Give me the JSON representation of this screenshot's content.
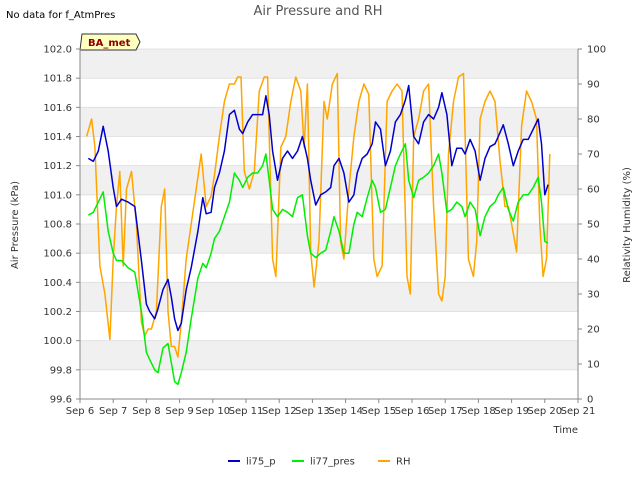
{
  "chart_data": {
    "type": "line",
    "title": "Air Pressure and RH",
    "note": "No data for f_AtmPres",
    "badge": "BA_met",
    "xlabel": "Time",
    "ylabel_left": "Air Pressure (kPa)",
    "ylabel_right": "Relativity Humidity (%)",
    "x_categories": [
      "Sep 6",
      "Sep 7",
      "Sep 8",
      "Sep 9",
      "Sep 10",
      "Sep 11",
      "Sep 12",
      "Sep 13",
      "Sep 14",
      "Sep 15",
      "Sep 16",
      "Sep 17",
      "Sep 18",
      "Sep 19",
      "Sep 20",
      "Sep 21"
    ],
    "xlim": [
      6,
      21
    ],
    "ylim_left": [
      99.6,
      102.0
    ],
    "ylim_right": [
      0,
      100
    ],
    "yticks_left": [
      "99.6",
      "99.8",
      "100.0",
      "100.2",
      "100.4",
      "100.6",
      "100.8",
      "101.0",
      "101.2",
      "101.4",
      "101.6",
      "101.8",
      "102.0"
    ],
    "yticks_right": [
      "0",
      "10",
      "20",
      "30",
      "40",
      "50",
      "60",
      "70",
      "80",
      "90",
      "100"
    ],
    "grid": "horizontal bands",
    "legend_position": "bottom",
    "colors": {
      "li75_p": "#0000cc",
      "li77_pres": "#00ee00",
      "RH": "#ffa500"
    },
    "series": [
      {
        "name": "li75_p",
        "axis": "left",
        "x": [
          6.25,
          6.4,
          6.55,
          6.7,
          6.85,
          7.0,
          7.1,
          7.25,
          7.45,
          7.65,
          7.85,
          8.0,
          8.1,
          8.25,
          8.35,
          8.5,
          8.65,
          8.75,
          8.85,
          8.95,
          9.05,
          9.2,
          9.35,
          9.55,
          9.7,
          9.8,
          9.95,
          10.05,
          10.2,
          10.35,
          10.5,
          10.65,
          10.8,
          10.9,
          11.05,
          11.2,
          11.35,
          11.5,
          11.6,
          11.7,
          11.8,
          11.95,
          12.1,
          12.25,
          12.4,
          12.55,
          12.7,
          12.85,
          12.95,
          13.1,
          13.25,
          13.4,
          13.55,
          13.65,
          13.8,
          13.95,
          14.1,
          14.25,
          14.35,
          14.5,
          14.65,
          14.8,
          14.9,
          15.05,
          15.2,
          15.35,
          15.5,
          15.65,
          15.8,
          15.9,
          16.05,
          16.2,
          16.35,
          16.5,
          16.65,
          16.8,
          16.9,
          17.05,
          17.2,
          17.35,
          17.5,
          17.6,
          17.75,
          17.9,
          18.05,
          18.2,
          18.35,
          18.5,
          18.6,
          18.75,
          18.9,
          19.05,
          19.2,
          19.35,
          19.5,
          19.65,
          19.8,
          19.9,
          20.0,
          20.1
        ],
        "values": [
          101.25,
          101.23,
          101.3,
          101.47,
          101.3,
          101.05,
          100.92,
          100.97,
          100.95,
          100.92,
          100.55,
          100.25,
          100.2,
          100.15,
          100.22,
          100.35,
          100.42,
          100.3,
          100.15,
          100.07,
          100.12,
          100.35,
          100.5,
          100.75,
          100.98,
          100.87,
          100.88,
          101.05,
          101.15,
          101.3,
          101.55,
          101.58,
          101.45,
          101.42,
          101.5,
          101.55,
          101.55,
          101.55,
          101.68,
          101.55,
          101.3,
          101.1,
          101.25,
          101.3,
          101.25,
          101.3,
          101.4,
          101.25,
          101.1,
          100.93,
          101.0,
          101.02,
          101.05,
          101.2,
          101.25,
          101.15,
          100.95,
          101.0,
          101.15,
          101.25,
          101.28,
          101.35,
          101.5,
          101.45,
          101.2,
          101.3,
          101.5,
          101.55,
          101.65,
          101.75,
          101.4,
          101.35,
          101.5,
          101.55,
          101.52,
          101.6,
          101.7,
          101.55,
          101.2,
          101.32,
          101.32,
          101.28,
          101.38,
          101.3,
          101.1,
          101.25,
          101.33,
          101.35,
          101.4,
          101.48,
          101.35,
          101.2,
          101.3,
          101.38,
          101.38,
          101.45,
          101.52,
          101.35,
          101.0,
          101.07
        ]
      },
      {
        "name": "li77_pres",
        "axis": "left",
        "x": [
          6.25,
          6.4,
          6.55,
          6.7,
          6.85,
          7.0,
          7.1,
          7.25,
          7.45,
          7.65,
          7.85,
          8.0,
          8.1,
          8.25,
          8.35,
          8.5,
          8.65,
          8.75,
          8.85,
          8.95,
          9.05,
          9.2,
          9.35,
          9.55,
          9.7,
          9.8,
          9.95,
          10.05,
          10.2,
          10.35,
          10.5,
          10.65,
          10.8,
          10.9,
          11.05,
          11.2,
          11.35,
          11.5,
          11.6,
          11.7,
          11.8,
          11.95,
          12.1,
          12.25,
          12.4,
          12.55,
          12.7,
          12.85,
          12.95,
          13.1,
          13.25,
          13.4,
          13.55,
          13.65,
          13.8,
          13.95,
          14.1,
          14.25,
          14.35,
          14.5,
          14.65,
          14.8,
          14.9,
          15.05,
          15.2,
          15.35,
          15.5,
          15.65,
          15.8,
          15.9,
          16.05,
          16.2,
          16.35,
          16.5,
          16.65,
          16.8,
          16.9,
          17.05,
          17.2,
          17.35,
          17.5,
          17.6,
          17.75,
          17.9,
          18.05,
          18.2,
          18.35,
          18.5,
          18.6,
          18.75,
          18.9,
          19.05,
          19.2,
          19.35,
          19.5,
          19.65,
          19.8,
          19.9,
          20.0,
          20.1
        ],
        "values": [
          100.86,
          100.88,
          100.95,
          101.02,
          100.75,
          100.6,
          100.55,
          100.55,
          100.5,
          100.47,
          100.2,
          99.92,
          99.87,
          99.8,
          99.78,
          99.95,
          99.98,
          99.85,
          99.72,
          99.7,
          99.78,
          99.92,
          100.15,
          100.43,
          100.53,
          100.5,
          100.6,
          100.7,
          100.75,
          100.85,
          100.95,
          101.15,
          101.1,
          101.05,
          101.12,
          101.15,
          101.15,
          101.2,
          101.28,
          101.1,
          100.9,
          100.85,
          100.9,
          100.88,
          100.85,
          100.98,
          101.0,
          100.72,
          100.6,
          100.57,
          100.6,
          100.62,
          100.75,
          100.85,
          100.75,
          100.6,
          100.6,
          100.8,
          100.88,
          100.85,
          100.98,
          101.1,
          101.05,
          100.88,
          100.9,
          101.05,
          101.2,
          101.28,
          101.35,
          101.1,
          100.98,
          101.1,
          101.12,
          101.15,
          101.2,
          101.28,
          101.15,
          100.88,
          100.9,
          100.95,
          100.92,
          100.85,
          100.95,
          100.9,
          100.72,
          100.85,
          100.92,
          100.95,
          101.0,
          101.05,
          100.9,
          100.82,
          100.95,
          101.0,
          101.0,
          101.05,
          101.12,
          100.95,
          100.68,
          100.67
        ]
      },
      {
        "name": "RH",
        "axis": "right",
        "x": [
          6.2,
          6.35,
          6.45,
          6.6,
          6.75,
          6.9,
          7.0,
          7.1,
          7.2,
          7.3,
          7.4,
          7.55,
          7.7,
          7.85,
          7.95,
          8.05,
          8.15,
          8.3,
          8.45,
          8.55,
          8.65,
          8.75,
          8.85,
          8.95,
          9.05,
          9.2,
          9.35,
          9.5,
          9.65,
          9.8,
          9.95,
          10.05,
          10.2,
          10.35,
          10.5,
          10.65,
          10.75,
          10.85,
          10.95,
          11.1,
          11.25,
          11.4,
          11.55,
          11.65,
          11.8,
          11.9,
          12.05,
          12.2,
          12.35,
          12.5,
          12.65,
          12.75,
          12.85,
          12.95,
          13.05,
          13.2,
          13.35,
          13.45,
          13.6,
          13.75,
          13.85,
          13.95,
          14.1,
          14.25,
          14.4,
          14.55,
          14.7,
          14.85,
          14.95,
          15.1,
          15.25,
          15.4,
          15.55,
          15.7,
          15.85,
          15.95,
          16.05,
          16.2,
          16.35,
          16.5,
          16.65,
          16.8,
          16.9,
          17.0,
          17.1,
          17.25,
          17.4,
          17.55,
          17.7,
          17.85,
          17.95,
          18.05,
          18.2,
          18.35,
          18.5,
          18.65,
          18.8,
          18.9,
          19.0,
          19.15,
          19.3,
          19.45,
          19.6,
          19.75,
          19.85,
          19.95,
          20.05,
          20.15
        ],
        "values": [
          75,
          80,
          72,
          38,
          30,
          17,
          40,
          55,
          65,
          38,
          60,
          65,
          50,
          22,
          18,
          20,
          20,
          25,
          55,
          60,
          25,
          15,
          15,
          12,
          22,
          40,
          50,
          60,
          70,
          55,
          58,
          64,
          75,
          85,
          90,
          90,
          92,
          92,
          65,
          60,
          65,
          88,
          92,
          92,
          40,
          35,
          72,
          75,
          85,
          92,
          88,
          72,
          90,
          42,
          32,
          45,
          85,
          80,
          90,
          93,
          45,
          40,
          60,
          75,
          85,
          90,
          87,
          40,
          35,
          38,
          85,
          88,
          90,
          88,
          35,
          30,
          75,
          80,
          88,
          90,
          55,
          30,
          28,
          35,
          70,
          85,
          92,
          93,
          40,
          35,
          45,
          80,
          85,
          88,
          85,
          68,
          55,
          55,
          50,
          42,
          78,
          88,
          85,
          80,
          50,
          35,
          40,
          70
        ]
      }
    ]
  },
  "legend": {
    "items": [
      "li75_p",
      "li77_pres",
      "RH"
    ]
  }
}
